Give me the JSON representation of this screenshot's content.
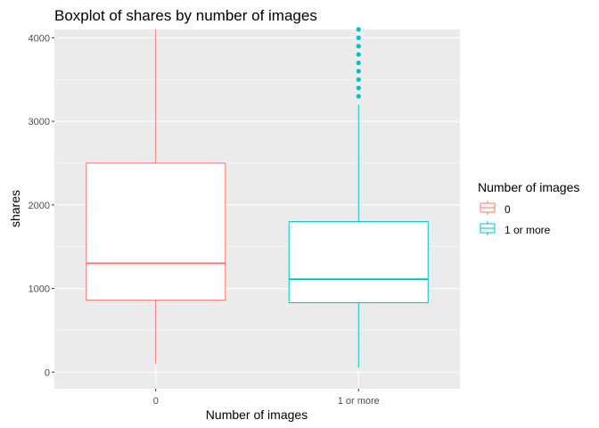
{
  "chart_data": {
    "type": "boxplot",
    "title": "Boxplot of shares by number of images",
    "xlabel": "Number of images",
    "ylabel": "shares",
    "categories": [
      "0",
      "1 or more"
    ],
    "ylim": [
      -200,
      4100
    ],
    "yticks": [
      0,
      1000,
      2000,
      3000,
      4000
    ],
    "ytick_labels": [
      "0",
      "1000",
      "2000",
      "3000",
      "4000"
    ],
    "grid": true,
    "legend": {
      "title": "Number of images",
      "position": "right",
      "entries": [
        "0",
        "1 or more"
      ]
    },
    "boxes": [
      {
        "category": "0",
        "color": "#f8766d",
        "whisker_low": 100,
        "q1": 860,
        "median": 1300,
        "q3": 2500,
        "whisker_high": 4100,
        "outliers": []
      },
      {
        "category": "1 or more",
        "color": "#00bfc4",
        "whisker_low": 50,
        "q1": 830,
        "median": 1110,
        "q3": 1800,
        "whisker_high": 3200,
        "outliers": [
          3300,
          3400,
          3500,
          3600,
          3700,
          3800,
          3900,
          4000,
          4100
        ]
      }
    ]
  },
  "colors": {
    "panel_background": "#ebebeb",
    "grid_major": "#ffffff",
    "box_fill": "#ffffff"
  }
}
